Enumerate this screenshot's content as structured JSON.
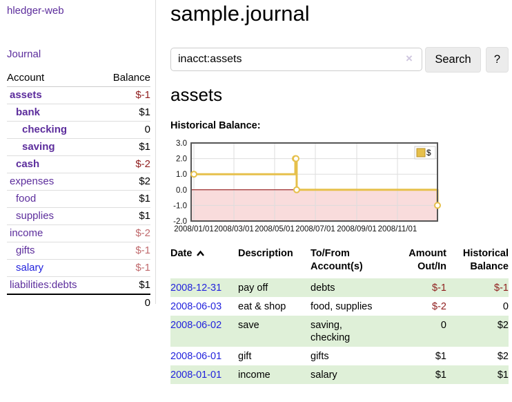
{
  "app": {
    "title": "hledger-web"
  },
  "colors": {
    "accent_purple": "#5c2d9c",
    "link_blue": "#2222dd",
    "negative_strong": "#8f1d1d",
    "negative_soft": "#c06a6d",
    "row_green": "#dff0d8",
    "series_gold": "#e6c04b"
  },
  "sidebar": {
    "journal_link": "Journal",
    "accounts_header": "Account",
    "balance_header": "Balance",
    "accounts": [
      {
        "name": "assets",
        "balance": "$-1",
        "indent": 0,
        "bold": true,
        "link": "purple",
        "tone": "negative-strong"
      },
      {
        "name": "bank",
        "balance": "$1",
        "indent": 1,
        "bold": true,
        "link": "purple",
        "tone": "normal"
      },
      {
        "name": "checking",
        "balance": "0",
        "indent": 2,
        "bold": true,
        "link": "purple",
        "tone": "normal"
      },
      {
        "name": "saving",
        "balance": "$1",
        "indent": 2,
        "bold": true,
        "link": "purple",
        "tone": "normal"
      },
      {
        "name": "cash",
        "balance": "$-2",
        "indent": 1,
        "bold": true,
        "link": "purple",
        "tone": "negative-strong"
      },
      {
        "name": "expenses",
        "balance": "$2",
        "indent": 0,
        "bold": false,
        "link": "purple",
        "tone": "normal"
      },
      {
        "name": "food",
        "balance": "$1",
        "indent": 1,
        "bold": false,
        "link": "purple",
        "tone": "normal"
      },
      {
        "name": "supplies",
        "balance": "$1",
        "indent": 1,
        "bold": false,
        "link": "purple",
        "tone": "normal"
      },
      {
        "name": "income",
        "balance": "$-2",
        "indent": 0,
        "bold": false,
        "link": "purple",
        "tone": "negative-soft"
      },
      {
        "name": "gifts",
        "balance": "$-1",
        "indent": 1,
        "bold": false,
        "link": "purple",
        "tone": "negative-soft"
      },
      {
        "name": "salary",
        "balance": "$-1",
        "indent": 1,
        "bold": false,
        "link": "blue",
        "tone": "negative-soft"
      },
      {
        "name": "liabilities:debts",
        "balance": "$1",
        "indent": 0,
        "bold": false,
        "link": "purple",
        "tone": "normal"
      }
    ],
    "total": "0"
  },
  "main": {
    "title": "sample.journal",
    "search": {
      "value": "inacct:assets",
      "clear_icon": "×",
      "button_label": "Search",
      "help_label": "?"
    },
    "account_heading": "assets",
    "chart_label": "Historical Balance:"
  },
  "chart_data": {
    "type": "line",
    "title": "Historical Balance",
    "step": true,
    "series": [
      {
        "name": "$",
        "color": "#e6c04b",
        "points": [
          [
            "2008-01-01",
            1
          ],
          [
            "2008-06-01",
            2
          ],
          [
            "2008-06-02",
            2
          ],
          [
            "2008-06-03",
            0
          ],
          [
            "2008-12-31",
            -1
          ]
        ]
      }
    ],
    "x_range": [
      "2008-01-01",
      "2008-12-31"
    ],
    "ylim": [
      -2,
      3
    ],
    "yticks": [
      "3.0",
      "2.0",
      "1.0",
      "0.0",
      "-1.0",
      "-2.0"
    ],
    "xticks": [
      "2008/01/01",
      "2008/03/01",
      "2008/05/01",
      "2008/07/01",
      "2008/09/01",
      "2008/11/01"
    ],
    "legend": {
      "label": "$",
      "position": "top-right"
    },
    "negative_region_color": "#f9dcdc",
    "zero_line_color": "#8b0000",
    "grid_color": "#dddddd",
    "border_color": "#555555"
  },
  "register": {
    "headers": {
      "date": "Date",
      "description": "Description",
      "accounts": "To/From Account(s)",
      "amount": "Amount Out/In",
      "balance": "Historical Balance"
    },
    "rows": [
      {
        "date": "2008-12-31",
        "description": "pay off",
        "accounts": "debts",
        "amount": "$-1",
        "balance": "$-1",
        "amount_tone": "negative",
        "balance_tone": "negative"
      },
      {
        "date": "2008-06-03",
        "description": "eat & shop",
        "accounts": "food, supplies",
        "amount": "$-2",
        "balance": "0",
        "amount_tone": "negative",
        "balance_tone": "normal"
      },
      {
        "date": "2008-06-02",
        "description": "save",
        "accounts": "saving, checking",
        "amount": "0",
        "balance": "$2",
        "amount_tone": "normal",
        "balance_tone": "normal"
      },
      {
        "date": "2008-06-01",
        "description": "gift",
        "accounts": "gifts",
        "amount": "$1",
        "balance": "$2",
        "amount_tone": "normal",
        "balance_tone": "normal"
      },
      {
        "date": "2008-01-01",
        "description": "income",
        "accounts": "salary",
        "amount": "$1",
        "balance": "$1",
        "amount_tone": "normal",
        "balance_tone": "normal"
      }
    ]
  }
}
